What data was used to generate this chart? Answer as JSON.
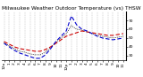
{
  "title": "Milwaukee Weather Outdoor Temperature (vs) THSW Index per Hour (Last 24 Hours)",
  "outdoor_temp": [
    46,
    43,
    40,
    38,
    37,
    36,
    35,
    35,
    37,
    40,
    44,
    48,
    52,
    54,
    56,
    58,
    57,
    56,
    55,
    54,
    53,
    53,
    54,
    55
  ],
  "thsw_index": [
    44,
    40,
    36,
    33,
    31,
    29,
    27,
    27,
    31,
    38,
    46,
    52,
    58,
    75,
    65,
    60,
    58,
    55,
    52,
    50,
    49,
    48,
    49,
    50
  ],
  "black_line": [
    45,
    41,
    38,
    35,
    34,
    32,
    31,
    31,
    34,
    39,
    45,
    50,
    55,
    64,
    60,
    59,
    57,
    55,
    53,
    52,
    51,
    50,
    51,
    52
  ],
  "hours": [
    0,
    1,
    2,
    3,
    4,
    5,
    6,
    7,
    8,
    9,
    10,
    11,
    12,
    13,
    14,
    15,
    16,
    17,
    18,
    19,
    20,
    21,
    22,
    23
  ],
  "hour_labels": [
    "12a",
    "1",
    "2",
    "3",
    "4",
    "5",
    "6",
    "7",
    "8",
    "9",
    "10",
    "11",
    "12p",
    "1",
    "2",
    "3",
    "4",
    "5",
    "6",
    "7",
    "8",
    "9",
    "10",
    "11"
  ],
  "ylim": [
    25,
    80
  ],
  "yticks": [
    30,
    40,
    50,
    60,
    70
  ],
  "temp_color": "#cc0000",
  "thsw_color": "#0000cc",
  "black_color": "#000000",
  "background_color": "#ffffff",
  "grid_color": "#999999",
  "title_fontsize": 4.2,
  "tick_fontsize": 3.2
}
